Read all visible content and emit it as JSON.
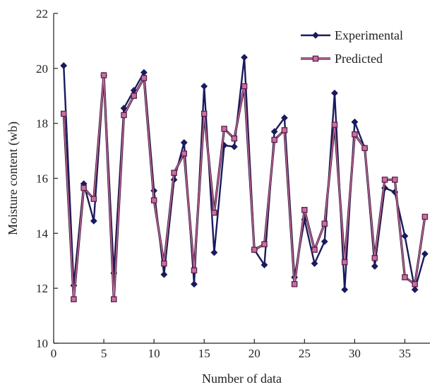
{
  "chart_data": {
    "type": "line",
    "xlabel": "Number of data",
    "ylabel": "Moisture content (wb)",
    "xlim": [
      0,
      37.5
    ],
    "ylim": [
      10,
      22
    ],
    "xticks": [
      0,
      5,
      10,
      15,
      20,
      25,
      30,
      35
    ],
    "yticks": [
      10,
      12,
      14,
      16,
      18,
      20,
      22
    ],
    "legend_position": "top-right",
    "series": [
      {
        "name": "Experimental",
        "color": "#1a1a5e",
        "marker": "diamond",
        "x": [
          1,
          2,
          3,
          4,
          5,
          6,
          7,
          8,
          9,
          10,
          11,
          12,
          13,
          14,
          15,
          16,
          17,
          18,
          19,
          20,
          21,
          22,
          23,
          24,
          25,
          26,
          27,
          28,
          29,
          30,
          31,
          32,
          33,
          34,
          35,
          36,
          37
        ],
        "values": [
          20.1,
          12.1,
          15.8,
          14.45,
          19.75,
          12.55,
          18.55,
          19.2,
          19.85,
          15.55,
          12.5,
          15.95,
          17.3,
          12.15,
          19.35,
          13.3,
          17.2,
          17.15,
          20.4,
          13.4,
          12.85,
          17.7,
          18.2,
          12.4,
          14.5,
          12.9,
          13.7,
          19.1,
          11.95,
          18.05,
          17.1,
          12.8,
          15.65,
          15.5,
          13.9,
          11.95,
          13.25
        ]
      },
      {
        "name": "Predicted",
        "color": "#c86fa3",
        "marker": "square",
        "x": [
          1,
          2,
          3,
          4,
          5,
          6,
          7,
          8,
          9,
          10,
          11,
          12,
          13,
          14,
          15,
          16,
          17,
          18,
          19,
          20,
          21,
          22,
          23,
          24,
          25,
          26,
          27,
          28,
          29,
          30,
          31,
          32,
          33,
          34,
          35,
          36,
          37
        ],
        "values": [
          18.35,
          11.6,
          15.65,
          15.25,
          19.75,
          11.6,
          18.3,
          19.0,
          19.65,
          15.2,
          12.9,
          16.2,
          16.9,
          12.65,
          18.35,
          14.75,
          17.8,
          17.45,
          19.35,
          13.4,
          13.6,
          17.4,
          17.75,
          12.15,
          14.85,
          13.4,
          14.35,
          17.95,
          12.95,
          17.6,
          17.1,
          13.1,
          15.95,
          15.95,
          12.4,
          12.15,
          14.6
        ]
      }
    ]
  }
}
